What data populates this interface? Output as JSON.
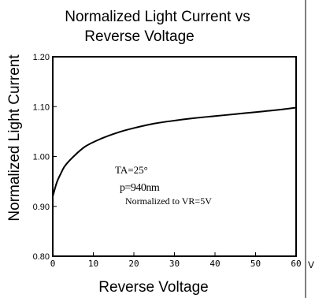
{
  "chart_data": {
    "type": "line",
    "title_lines": [
      "Normalized Light Current vs",
      "Reverse Voltage"
    ],
    "xlabel": "Reverse Voltage",
    "ylabel": "Normalized Light Current",
    "xlim": [
      0,
      60
    ],
    "ylim": [
      0.8,
      1.2
    ],
    "x_ticks": [
      0,
      10,
      20,
      30,
      40,
      50,
      60
    ],
    "y_ticks": [
      0.8,
      0.9,
      1.0,
      1.1,
      1.2
    ],
    "x_tick_labels": [
      "0",
      "10",
      "20",
      "30",
      "40",
      "50",
      "60"
    ],
    "y_tick_labels": [
      "0.80",
      "0.90",
      "1.00",
      "1.10",
      "1.20"
    ],
    "grid": false,
    "series": [
      {
        "x": [
          0,
          1,
          2,
          3,
          5,
          8,
          12,
          16,
          20,
          25,
          30,
          35,
          40,
          45,
          50,
          55,
          60
        ],
        "y": [
          0.92,
          0.948,
          0.966,
          0.981,
          0.999,
          1.02,
          1.036,
          1.048,
          1.057,
          1.066,
          1.072,
          1.077,
          1.081,
          1.085,
          1.089,
          1.093,
          1.098
        ]
      }
    ],
    "annotations": {
      "temperature": "TA=25°",
      "wavelength": "p=940nm",
      "normalization": "Normalized to VR=5V"
    }
  },
  "decor": {
    "right_edge_label": "V"
  }
}
